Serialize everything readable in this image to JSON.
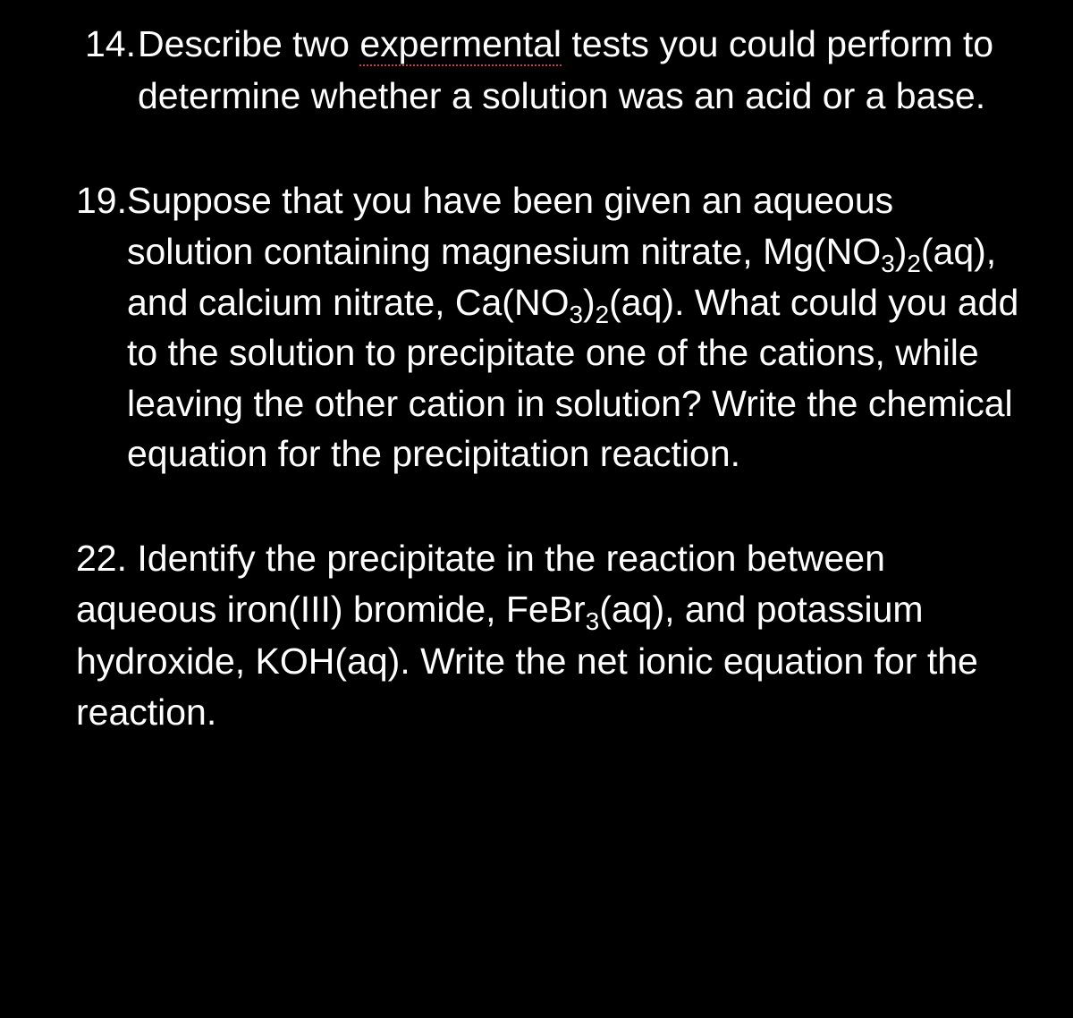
{
  "colors": {
    "background": "#000000",
    "text": "#ffffff",
    "spellcheck_underline": "#cc3a3a"
  },
  "typography": {
    "font_family": "Comic Sans MS",
    "base_fontsize_pt": 31,
    "line_height": 1.4
  },
  "q14": {
    "number": "14. ",
    "pre": "Describe two ",
    "misspelled": "expermental",
    "post": " tests you could perform to determine whether a solution was an acid or a base."
  },
  "q19": {
    "number": "19. ",
    "t1": "Suppose that you have been given an aqueous solution containing magnesium nitrate, Mg(NO",
    "s1": "3",
    "t2": ")",
    "s2": "2",
    "t3": "(aq), and calcium nitrate, Ca(NO",
    "s3": "3",
    "t4": ")",
    "s4": "2",
    "t5": "(aq). What could you add to the solution to precipitate one of the cations, while leaving the other cation in solution? Write the chemical equation for the precipitation reaction."
  },
  "q22": {
    "number": "22. ",
    "t1": "Identify the precipitate in the reaction between aqueous iron(III) bromide, FeBr",
    "s1": "3",
    "t2": "(aq), and potassium hydroxide, KOH(aq). Write the net ionic equation for the reaction."
  }
}
